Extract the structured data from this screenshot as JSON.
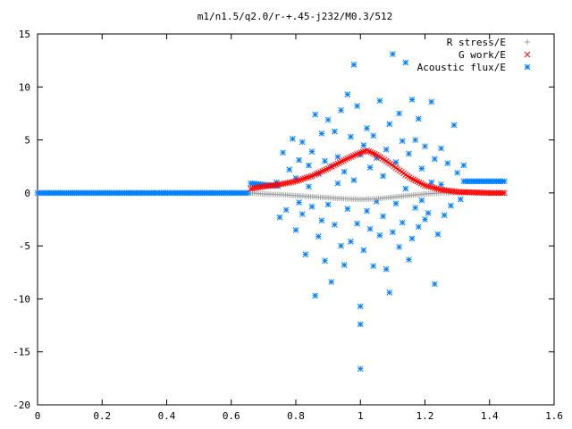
{
  "chart_data": {
    "type": "scatter",
    "title": "m1/n1.5/q2.0/r-+.45-j232/M0.3/512",
    "xlabel": "",
    "ylabel": "",
    "xlim": [
      0,
      1.6
    ],
    "ylim": [
      -20,
      15
    ],
    "x_ticks": [
      "0",
      "0.2",
      "0.4",
      "0.6",
      "0.8",
      "1",
      "1.2",
      "1.4",
      "1.6"
    ],
    "y_ticks": [
      "15",
      "10",
      "5",
      "0",
      "-5",
      "-10",
      "-15",
      "-20"
    ],
    "grid": false,
    "legend_position": "top-right",
    "series": [
      {
        "name": "R stress/E",
        "marker": "+",
        "color": "#a0a0a0",
        "description_points": [
          [
            0.66,
            0.0
          ],
          [
            0.7,
            -0.1
          ],
          [
            0.75,
            -0.15
          ],
          [
            0.8,
            -0.25
          ],
          [
            0.85,
            -0.35
          ],
          [
            0.9,
            -0.45
          ],
          [
            0.95,
            -0.55
          ],
          [
            1.0,
            -0.6
          ],
          [
            1.05,
            -0.55
          ],
          [
            1.1,
            -0.4
          ],
          [
            1.15,
            -0.25
          ],
          [
            1.2,
            -0.1
          ],
          [
            1.25,
            0.0
          ],
          [
            1.3,
            0.0
          ],
          [
            1.35,
            0.0
          ],
          [
            1.4,
            0.0
          ],
          [
            1.45,
            0.0
          ]
        ]
      },
      {
        "name": "G work/E",
        "marker": "x",
        "color": "#ff0000",
        "description_points": [
          [
            0.66,
            0.4
          ],
          [
            0.7,
            0.6
          ],
          [
            0.75,
            0.8
          ],
          [
            0.8,
            1.1
          ],
          [
            0.85,
            1.6
          ],
          [
            0.9,
            2.3
          ],
          [
            0.95,
            3.1
          ],
          [
            1.0,
            3.8
          ],
          [
            1.02,
            4.0
          ],
          [
            1.05,
            3.6
          ],
          [
            1.1,
            2.6
          ],
          [
            1.15,
            1.5
          ],
          [
            1.2,
            0.7
          ],
          [
            1.25,
            0.3
          ],
          [
            1.3,
            0.1
          ],
          [
            1.35,
            0.05
          ],
          [
            1.4,
            0.0
          ],
          [
            1.45,
            0.0
          ]
        ]
      },
      {
        "name": "Acoustic flux/E",
        "marker": "*",
        "color": "#0080ff",
        "baseline_left": [
          0.0,
          0.0
        ],
        "baseline_left_end": 0.66,
        "baseline_right_value": 1.1,
        "baseline_right_start": 1.32,
        "baseline_right_end": 1.45,
        "scatter_points": [
          [
            0.74,
            1.0
          ],
          [
            0.75,
            -2.3
          ],
          [
            0.76,
            3.8
          ],
          [
            0.77,
            -1.6
          ],
          [
            0.78,
            2.2
          ],
          [
            0.79,
            5.1
          ],
          [
            0.8,
            -3.5
          ],
          [
            0.8,
            1.4
          ],
          [
            0.81,
            -0.9
          ],
          [
            0.81,
            3.1
          ],
          [
            0.82,
            -2.0
          ],
          [
            0.82,
            4.8
          ],
          [
            0.83,
            -5.8
          ],
          [
            0.84,
            0.6
          ],
          [
            0.84,
            2.6
          ],
          [
            0.85,
            -1.3
          ],
          [
            0.85,
            3.9
          ],
          [
            0.86,
            -9.7
          ],
          [
            0.86,
            7.4
          ],
          [
            0.87,
            -4.1
          ],
          [
            0.87,
            1.8
          ],
          [
            0.88,
            5.6
          ],
          [
            0.88,
            -2.6
          ],
          [
            0.89,
            3.0
          ],
          [
            0.89,
            -6.4
          ],
          [
            0.9,
            6.9
          ],
          [
            0.9,
            -1.1
          ],
          [
            0.91,
            2.5
          ],
          [
            0.91,
            -8.4
          ],
          [
            0.92,
            5.8
          ],
          [
            0.92,
            -3.0
          ],
          [
            0.93,
            0.9
          ],
          [
            0.93,
            3.4
          ],
          [
            0.94,
            -5.0
          ],
          [
            0.94,
            7.8
          ],
          [
            0.95,
            -6.8
          ],
          [
            0.95,
            2.0
          ],
          [
            0.96,
            9.3
          ],
          [
            0.96,
            -1.5
          ],
          [
            0.97,
            5.3
          ],
          [
            0.97,
            -4.6
          ],
          [
            0.98,
            12.1
          ],
          [
            0.98,
            1.2
          ],
          [
            0.99,
            -2.9
          ],
          [
            0.99,
            8.2
          ],
          [
            1.0,
            -12.4
          ],
          [
            1.0,
            -10.7
          ],
          [
            1.0,
            3.6
          ],
          [
            1.0,
            -16.6
          ],
          [
            1.01,
            -5.4
          ],
          [
            1.01,
            4.5
          ],
          [
            1.02,
            -1.7
          ],
          [
            1.02,
            6.1
          ],
          [
            1.03,
            -3.4
          ],
          [
            1.03,
            2.4
          ],
          [
            1.04,
            -6.9
          ],
          [
            1.04,
            5.4
          ],
          [
            1.05,
            -0.8
          ],
          [
            1.05,
            3.3
          ],
          [
            1.06,
            -4.0
          ],
          [
            1.06,
            8.7
          ],
          [
            1.07,
            -2.2
          ],
          [
            1.07,
            1.6
          ],
          [
            1.08,
            -7.2
          ],
          [
            1.08,
            4.1
          ],
          [
            1.09,
            -9.4
          ],
          [
            1.09,
            6.5
          ],
          [
            1.1,
            -3.7
          ],
          [
            1.1,
            13.1
          ],
          [
            1.11,
            -1.0
          ],
          [
            1.11,
            2.9
          ],
          [
            1.12,
            -5.1
          ],
          [
            1.12,
            7.5
          ],
          [
            1.13,
            -2.8
          ],
          [
            1.13,
            4.9
          ],
          [
            1.14,
            0.4
          ],
          [
            1.14,
            12.3
          ],
          [
            1.15,
            -6.3
          ],
          [
            1.15,
            3.7
          ],
          [
            1.16,
            -4.3
          ],
          [
            1.16,
            8.8
          ],
          [
            1.17,
            -1.4
          ],
          [
            1.17,
            5.0
          ],
          [
            1.18,
            -3.2
          ],
          [
            1.18,
            7.0
          ],
          [
            1.19,
            -0.7
          ],
          [
            1.19,
            2.3
          ],
          [
            1.2,
            -2.5
          ],
          [
            1.2,
            4.4
          ],
          [
            1.21,
            -1.9
          ],
          [
            1.22,
            8.6
          ],
          [
            1.22,
            1.0
          ],
          [
            1.23,
            -8.6
          ],
          [
            1.23,
            3.2
          ],
          [
            1.24,
            -3.9
          ],
          [
            1.25,
            0.8
          ],
          [
            1.25,
            4.2
          ],
          [
            1.26,
            -2.1
          ],
          [
            1.27,
            2.8
          ],
          [
            1.28,
            -1.2
          ],
          [
            1.29,
            6.4
          ],
          [
            1.3,
            1.9
          ],
          [
            1.31,
            -0.6
          ],
          [
            1.32,
            2.6
          ]
        ]
      }
    ]
  }
}
